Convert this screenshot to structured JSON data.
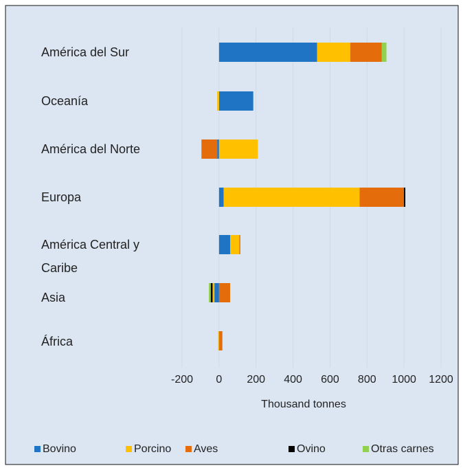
{
  "chart_data": {
    "type": "stacked_barh",
    "xlabel": "Thousand tonnes",
    "categories": [
      "América del Sur",
      "Oceanía",
      "América del Norte",
      "Europa",
      "América Central y Caribe",
      "Asia",
      "África"
    ],
    "series": [
      {
        "name": "Bovino",
        "color": "#1f74c4",
        "values": [
          530,
          185,
          -10,
          25,
          60,
          -25,
          0
        ]
      },
      {
        "name": "Porcino",
        "color": "#ffc000",
        "values": [
          180,
          -10,
          210,
          735,
          50,
          -10,
          -5
        ]
      },
      {
        "name": "Aves",
        "color": "#e46c0a",
        "values": [
          170,
          0,
          -85,
          240,
          5,
          60,
          18
        ]
      },
      {
        "name": "Ovino",
        "color": "#000000",
        "values": [
          0,
          0,
          0,
          7,
          0,
          -10,
          0
        ]
      },
      {
        "name": "Otras carnes",
        "color": "#92d050",
        "values": [
          25,
          0,
          0,
          0,
          0,
          -10,
          0
        ]
      }
    ],
    "xlim": [
      -200,
      1200
    ],
    "xticks": [
      -200,
      0,
      200,
      400,
      600,
      800,
      1000,
      1200
    ],
    "grid": true
  }
}
